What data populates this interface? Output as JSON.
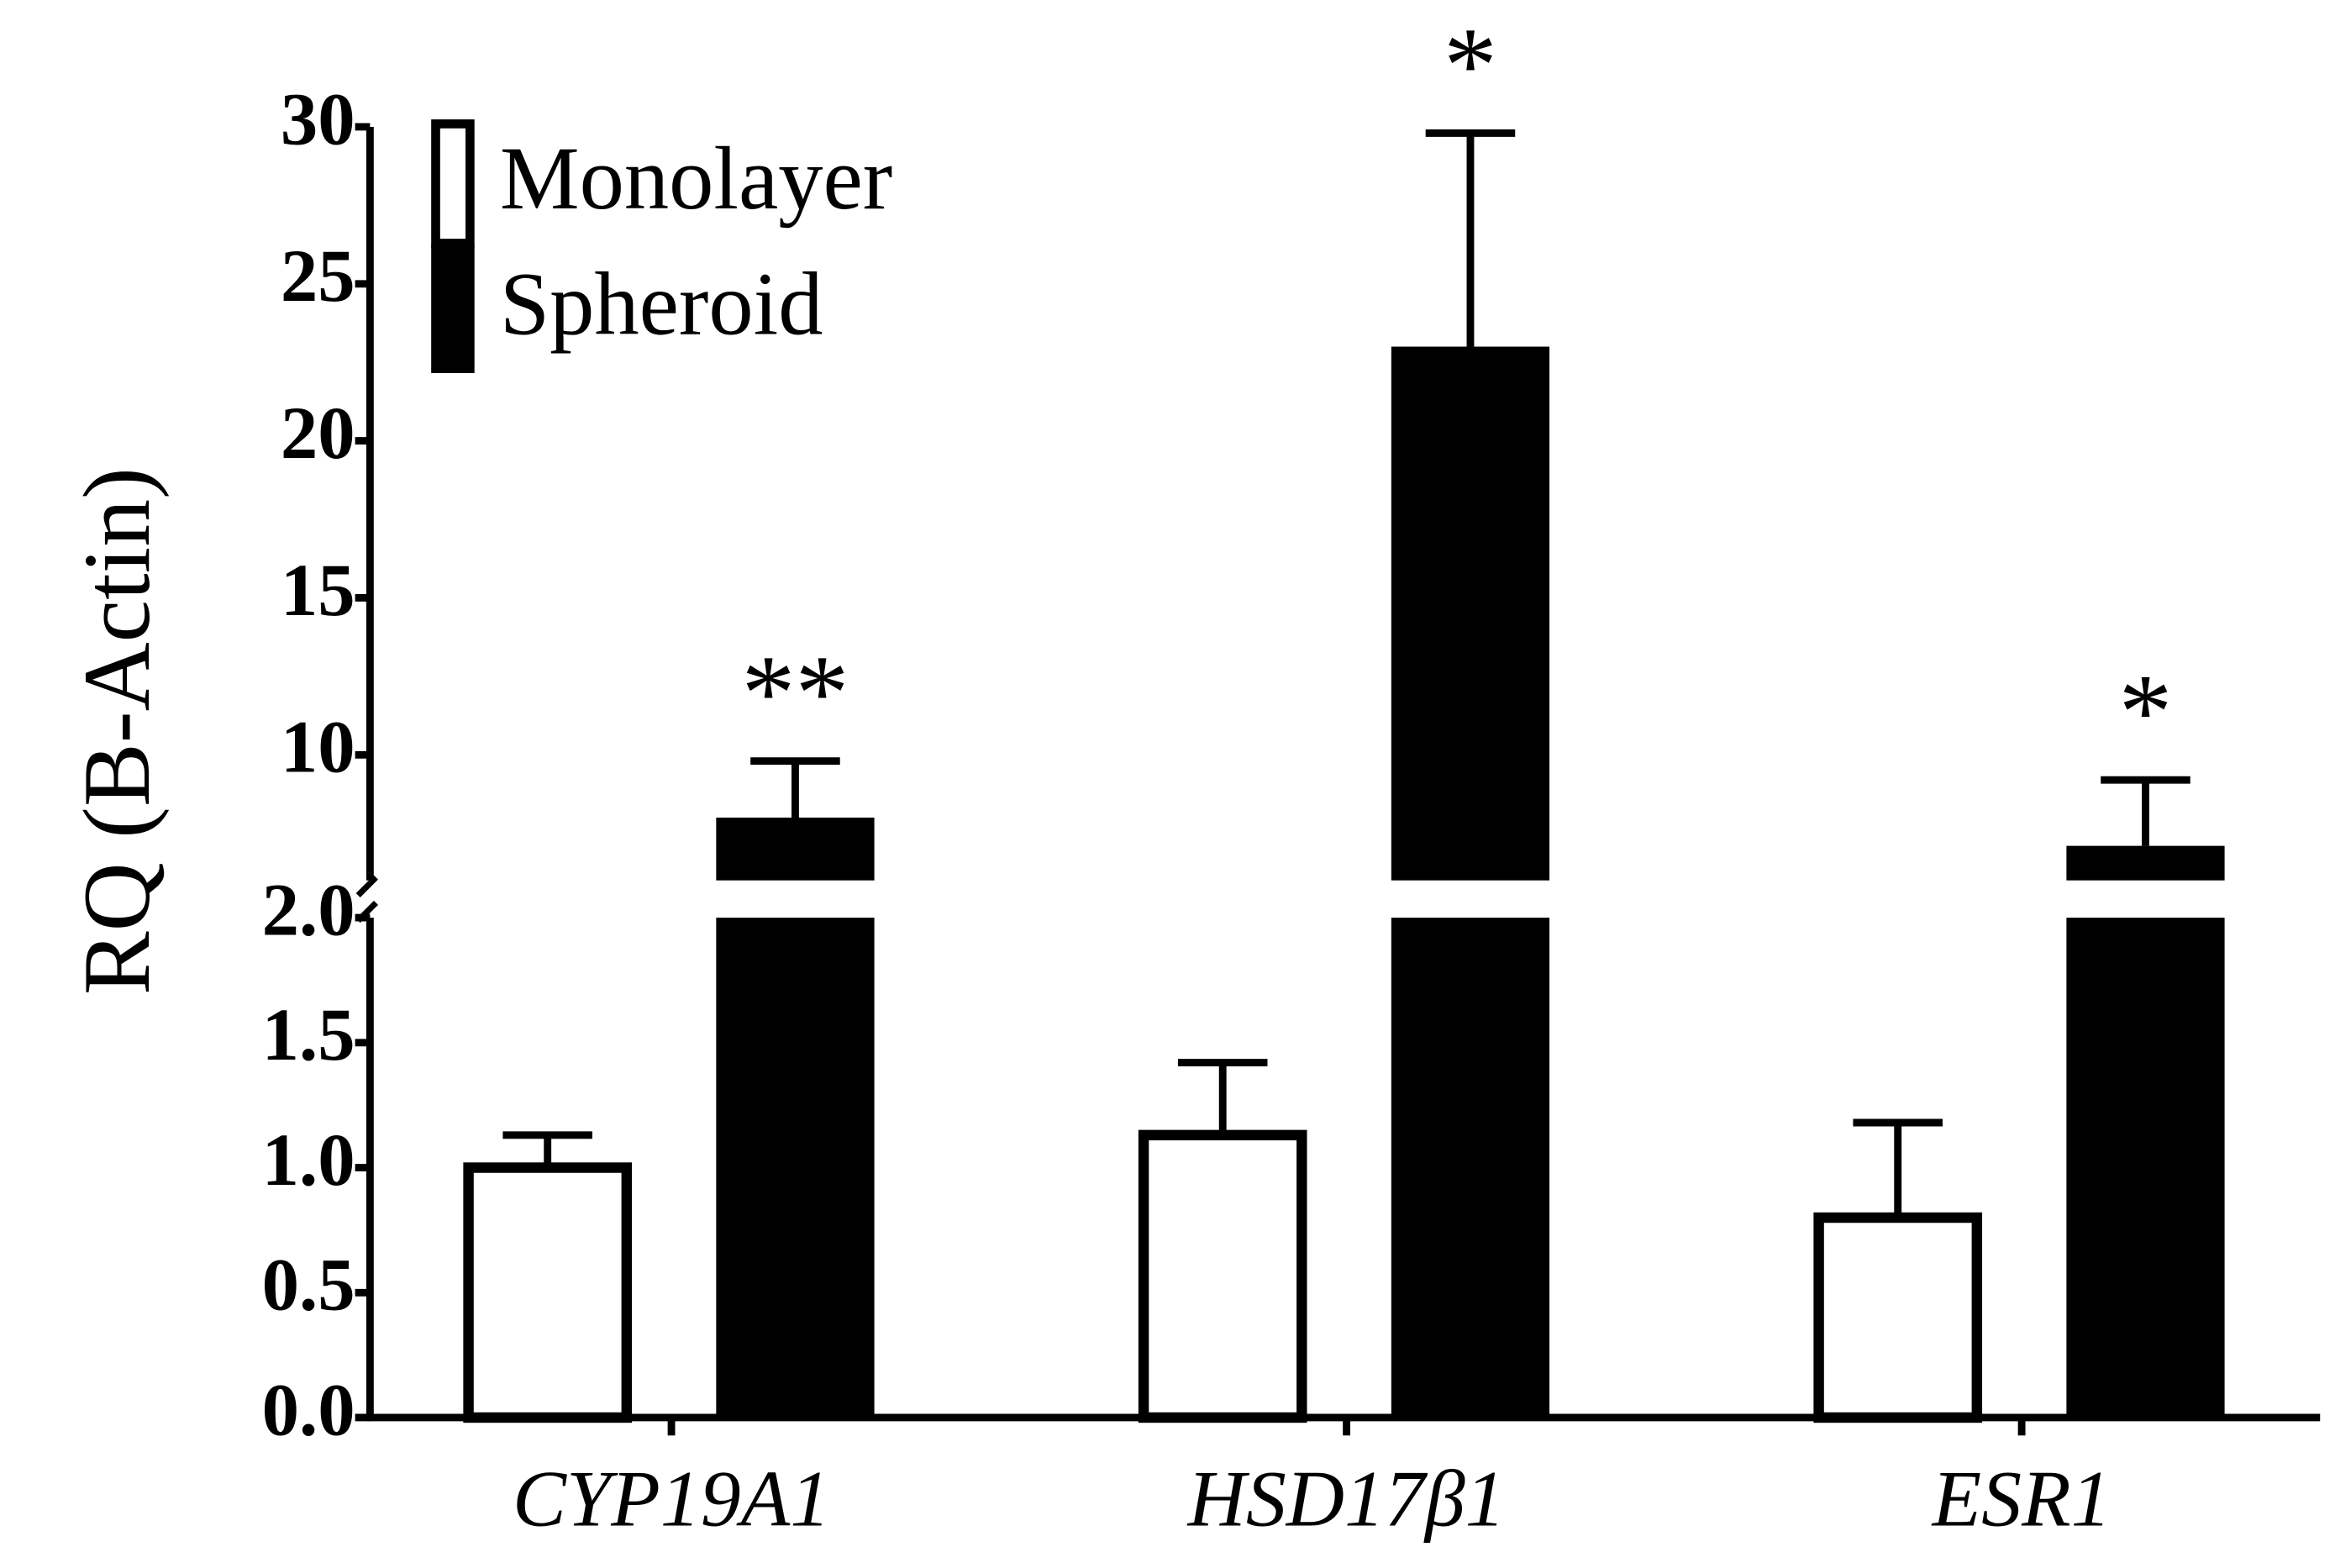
{
  "chart_data": {
    "type": "bar",
    "y_label": "RQ (B-Actin)",
    "categories": [
      "CYP19A1",
      "HSD17β1",
      "ESR1"
    ],
    "series": [
      {
        "name": "Monolayer",
        "color": "#ffffff",
        "values": [
          1.0,
          1.13,
          0.8
        ],
        "errors": [
          0.13,
          0.29,
          0.38
        ]
      },
      {
        "name": "Spheroid",
        "color": "#000000",
        "values": [
          8.0,
          23.0,
          7.1
        ],
        "errors": [
          1.8,
          6.8,
          2.1
        ],
        "annotations": [
          "**",
          "*",
          "*"
        ]
      }
    ],
    "ylim_lower": [
      0,
      2.0
    ],
    "yticks_lower": [
      {
        "value": 0,
        "label": "0.0"
      },
      0.5,
      {
        "value": 1,
        "label": "1.0"
      },
      1.5,
      {
        "value": 2,
        "label": "2.0"
      }
    ],
    "ylim_upper": [
      6,
      30
    ],
    "yticks_upper": [
      10,
      15,
      20,
      25,
      30
    ],
    "legend": "upper left"
  }
}
